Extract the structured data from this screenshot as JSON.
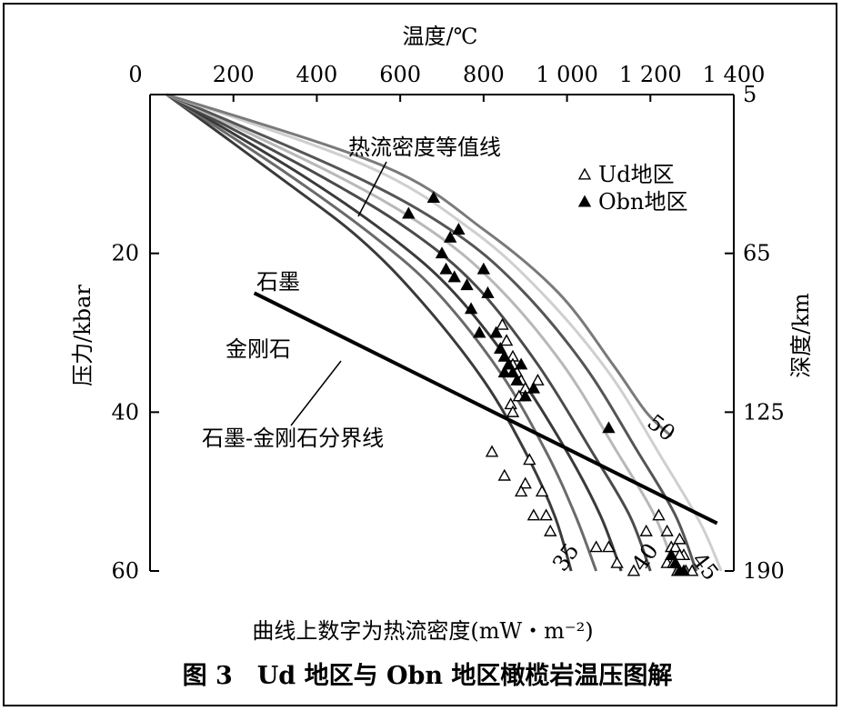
{
  "chart_data": {
    "type": "scatter",
    "xlabel_top": "温度/℃",
    "ylabel_left": "压力/kbar",
    "ylabel_right": "深度/km",
    "xticks": [
      {
        "value": 0,
        "label": "0"
      },
      {
        "value": 200,
        "label": "200"
      },
      {
        "value": 400,
        "label": "400"
      },
      {
        "value": 600,
        "label": "600"
      },
      {
        "value": 800,
        "label": "800"
      },
      {
        "value": 1000,
        "label": "1 000"
      },
      {
        "value": 1200,
        "label": "1 200"
      },
      {
        "value": 1400,
        "label": "1 400"
      }
    ],
    "xlim": [
      0,
      1400
    ],
    "yticks_left": [
      {
        "value": 20,
        "label": "20"
      },
      {
        "value": 40,
        "label": "40"
      },
      {
        "value": 60,
        "label": "60"
      }
    ],
    "yticks_right": [
      {
        "value": 0,
        "label": "5"
      },
      {
        "value": 20,
        "label": "65"
      },
      {
        "value": 40,
        "label": "125"
      },
      {
        "value": 60,
        "label": "190"
      }
    ],
    "ylim": [
      0,
      60
    ],
    "y_inverted": true,
    "legend": {
      "placement": "top-right",
      "entries": [
        {
          "label": "Ud地区",
          "marker": "open-triangle"
        },
        {
          "label": "Obn地区",
          "marker": "filled-triangle"
        }
      ]
    },
    "geotherms": [
      {
        "name": "35",
        "color": "#3a3a3a",
        "points": [
          [
            40,
            0
          ],
          [
            300,
            10
          ],
          [
            500,
            18
          ],
          [
            650,
            26
          ],
          [
            800,
            36
          ],
          [
            900,
            45
          ],
          [
            970,
            53
          ],
          [
            1010,
            60
          ]
        ]
      },
      {
        "name": "",
        "color": "#6a6a6a",
        "points": [
          [
            40,
            0
          ],
          [
            330,
            10
          ],
          [
            540,
            18
          ],
          [
            690,
            25
          ],
          [
            840,
            35
          ],
          [
            950,
            45
          ],
          [
            1020,
            53
          ],
          [
            1070,
            60
          ]
        ]
      },
      {
        "name": "",
        "color": "#3a3a3a",
        "points": [
          [
            40,
            0
          ],
          [
            360,
            10
          ],
          [
            580,
            18
          ],
          [
            730,
            25
          ],
          [
            880,
            35
          ],
          [
            1000,
            45
          ],
          [
            1080,
            53
          ],
          [
            1130,
            60
          ]
        ]
      },
      {
        "name": "40",
        "color": "#4a4a4a",
        "points": [
          [
            40,
            0
          ],
          [
            400,
            10
          ],
          [
            620,
            17
          ],
          [
            780,
            24
          ],
          [
            930,
            34
          ],
          [
            1060,
            45
          ],
          [
            1150,
            53
          ],
          [
            1200,
            60
          ]
        ]
      },
      {
        "name": "",
        "color": "#b8b8b8",
        "points": [
          [
            40,
            0
          ],
          [
            440,
            10
          ],
          [
            670,
            17
          ],
          [
            830,
            24
          ],
          [
            990,
            34
          ],
          [
            1120,
            45
          ],
          [
            1210,
            53
          ],
          [
            1260,
            60
          ]
        ]
      },
      {
        "name": "45",
        "color": "#555555",
        "points": [
          [
            40,
            0
          ],
          [
            480,
            10
          ],
          [
            720,
            17
          ],
          [
            880,
            24
          ],
          [
            1040,
            34
          ],
          [
            1170,
            45
          ],
          [
            1260,
            53
          ],
          [
            1310,
            60
          ]
        ]
      },
      {
        "name": "",
        "color": "#cfcfcf",
        "points": [
          [
            40,
            0
          ],
          [
            520,
            9
          ],
          [
            770,
            17
          ],
          [
            940,
            25
          ],
          [
            1100,
            35
          ],
          [
            1230,
            46
          ],
          [
            1320,
            54
          ],
          [
            1370,
            60
          ]
        ]
      },
      {
        "name": "50",
        "color": "#7a7a7a",
        "points": [
          [
            40,
            0
          ],
          [
            560,
            9
          ],
          [
            800,
            17
          ],
          [
            980,
            25
          ],
          [
            1110,
            34
          ],
          [
            1190,
            40
          ],
          [
            1250,
            43
          ]
        ]
      }
    ],
    "graphite_diamond_boundary": {
      "name": "石墨-金刚石分界线",
      "points": [
        [
          250,
          25
        ],
        [
          1360,
          54
        ]
      ]
    },
    "field_labels": [
      "石墨",
      "金刚石"
    ],
    "annotations": [
      "热流密度等值线",
      "石墨-金刚石分界线"
    ],
    "series": [
      {
        "name": "Ud地区",
        "marker": "open-triangle",
        "points": [
          [
            845,
            29
          ],
          [
            855,
            31
          ],
          [
            870,
            33
          ],
          [
            870,
            34
          ],
          [
            880,
            35
          ],
          [
            890,
            36
          ],
          [
            900,
            37
          ],
          [
            930,
            36
          ],
          [
            885,
            38
          ],
          [
            865,
            39
          ],
          [
            870,
            40
          ],
          [
            820,
            45
          ],
          [
            850,
            48
          ],
          [
            910,
            46
          ],
          [
            900,
            49
          ],
          [
            890,
            50
          ],
          [
            940,
            50
          ],
          [
            950,
            53
          ],
          [
            920,
            53
          ],
          [
            960,
            55
          ],
          [
            1070,
            57
          ],
          [
            1100,
            57
          ],
          [
            1120,
            59
          ],
          [
            1160,
            60
          ],
          [
            1190,
            55
          ],
          [
            1220,
            53
          ],
          [
            1240,
            55
          ],
          [
            1250,
            57
          ],
          [
            1260,
            57
          ],
          [
            1270,
            56
          ],
          [
            1280,
            58
          ],
          [
            1265,
            60
          ],
          [
            1285,
            60
          ],
          [
            1300,
            60
          ],
          [
            1240,
            59
          ],
          [
            1255,
            59
          ],
          [
            1270,
            58
          ]
        ]
      },
      {
        "name": "Obn地区",
        "marker": "filled-triangle",
        "points": [
          [
            620,
            15
          ],
          [
            680,
            13
          ],
          [
            700,
            20
          ],
          [
            720,
            18
          ],
          [
            740,
            17
          ],
          [
            710,
            22
          ],
          [
            730,
            23
          ],
          [
            760,
            24
          ],
          [
            800,
            22
          ],
          [
            810,
            25
          ],
          [
            770,
            27
          ],
          [
            790,
            30
          ],
          [
            830,
            30
          ],
          [
            840,
            32
          ],
          [
            850,
            33
          ],
          [
            860,
            34
          ],
          [
            850,
            35
          ],
          [
            870,
            35
          ],
          [
            880,
            36
          ],
          [
            890,
            34
          ],
          [
            900,
            38
          ],
          [
            920,
            37
          ],
          [
            1100,
            42
          ],
          [
            1250,
            58
          ],
          [
            1260,
            59
          ],
          [
            1270,
            60
          ],
          [
            1280,
            60
          ]
        ]
      }
    ]
  },
  "xaxis_note": "曲线上数字为热流密度(mW・m⁻²)",
  "caption": "图 3　Ud 地区与 Obn 地区橄榄岩温压图解"
}
